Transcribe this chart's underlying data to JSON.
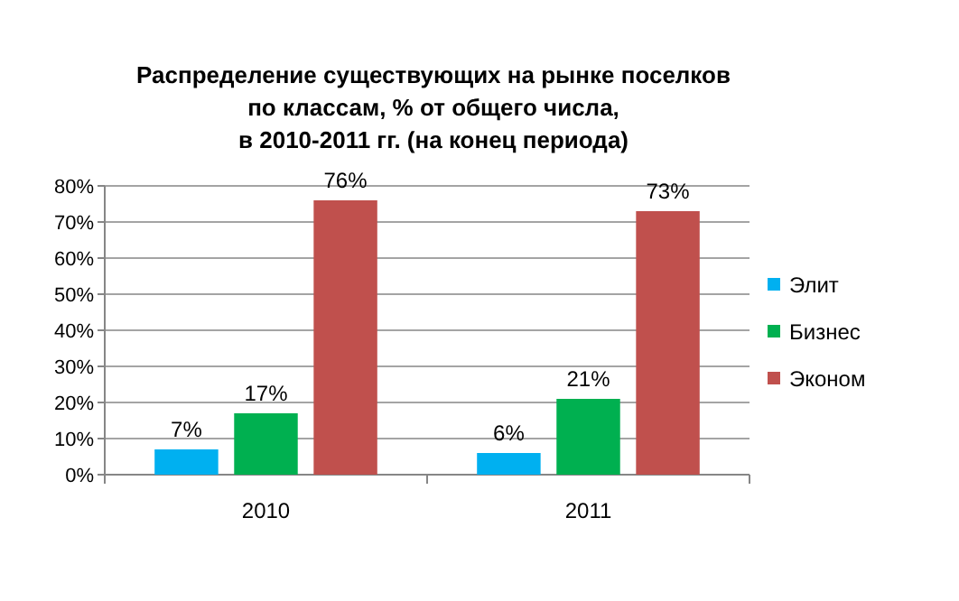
{
  "chart_data": {
    "type": "bar",
    "title": "Распределение существующих на рынке поселков\nпо классам, % от общего числа,\nв 2010-2011  гг. (на конец периода)",
    "categories": [
      "2010",
      "2011"
    ],
    "series": [
      {
        "name": "Элит",
        "color": "#00b0f0",
        "values": [
          7,
          6
        ],
        "value_labels": [
          "7%",
          "6%"
        ]
      },
      {
        "name": "Бизнес",
        "color": "#00b050",
        "values": [
          17,
          21
        ],
        "value_labels": [
          "17%",
          "21%"
        ]
      },
      {
        "name": "Эконом",
        "color": "#c0504d",
        "values": [
          76,
          73
        ],
        "value_labels": [
          "76%",
          "73%"
        ]
      }
    ],
    "ylim": [
      0,
      80
    ],
    "yticks": [
      {
        "value": 0,
        "label": "0%"
      },
      {
        "value": 10,
        "label": "10%"
      },
      {
        "value": 20,
        "label": "20%"
      },
      {
        "value": 30,
        "label": "30%"
      },
      {
        "value": 40,
        "label": "40%"
      },
      {
        "value": 50,
        "label": "50%"
      },
      {
        "value": 60,
        "label": "60%"
      },
      {
        "value": 70,
        "label": "70%"
      },
      {
        "value": 80,
        "label": "80%"
      }
    ],
    "grid": "y",
    "legend": "right"
  }
}
